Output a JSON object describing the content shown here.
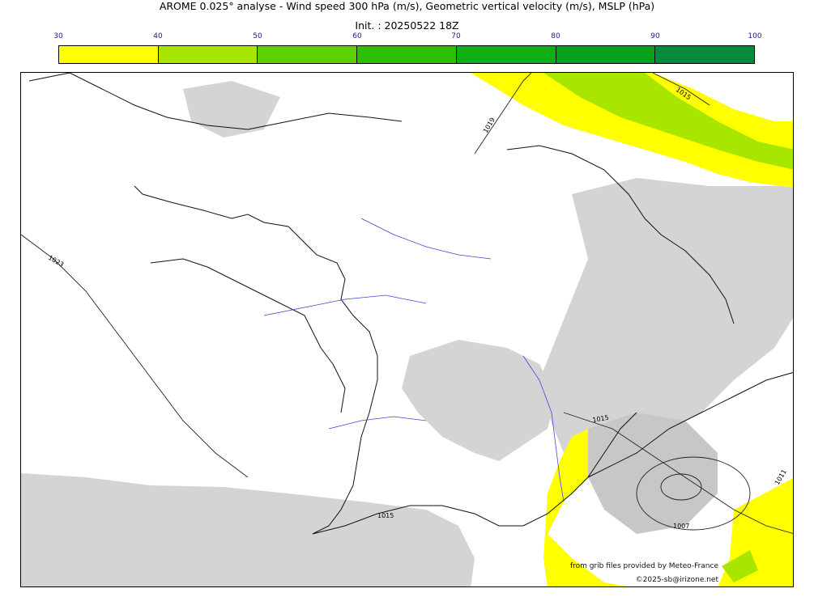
{
  "title": "AROME 0.025° analyse - Wind speed 300 hPa (m/s), Geometric vertical velocity (m/s), MSLP (hPa)",
  "init": "Init. : 20250522 18Z",
  "colorbar": {
    "ticks": [
      "30",
      "40",
      "50",
      "60",
      "70",
      "80",
      "90",
      "100"
    ],
    "colors": [
      "#ffff00",
      "#a8e600",
      "#5dd100",
      "#2ec000",
      "#0fae14",
      "#05a01c",
      "#078a3c",
      "#0b7548"
    ]
  },
  "isobar_labels": [
    {
      "text": "1015"
    },
    {
      "text": "1019"
    },
    {
      "text": "1023"
    },
    {
      "text": "1015"
    },
    {
      "text": "1015"
    },
    {
      "text": "1007"
    },
    {
      "text": "1011"
    }
  ],
  "credits": {
    "source": "from grib files provided by Meteo-France",
    "copyright": "©2025-sb@irizone.net"
  }
}
